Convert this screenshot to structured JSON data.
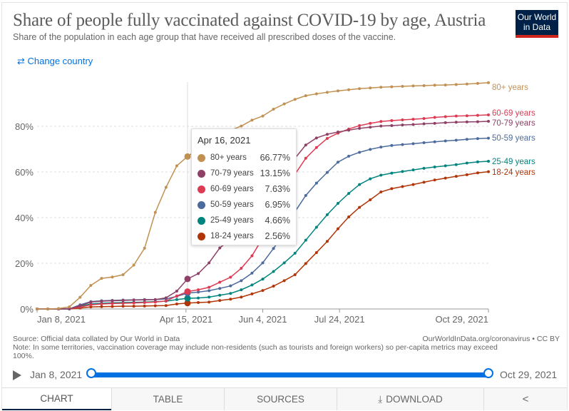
{
  "header": {
    "title": "Share of people fully vaccinated against COVID-19 by age, Austria",
    "subtitle": "Share of the population in each age group that have received all prescribed doses of the vaccine.",
    "logo_text": "Our World in Data",
    "change_country_label": "Change country",
    "change_country_icon": "swap-arrows-icon"
  },
  "tooltip": {
    "date": "Apr 16, 2021",
    "rows": [
      {
        "name": "80+ years",
        "value": "66.77%"
      },
      {
        "name": "70-79 years",
        "value": "13.15%"
      },
      {
        "name": "60-69 years",
        "value": "7.63%"
      },
      {
        "name": "50-59 years",
        "value": "6.95%"
      },
      {
        "name": "25-49 years",
        "value": "4.66%"
      },
      {
        "name": "18-24 years",
        "value": "2.56%"
      }
    ]
  },
  "footer": {
    "source": "Source: Official data collated by Our World in Data",
    "note": "Note: In some territories, vaccination coverage may include non-residents (such as tourists and foreign workers) so per-capita metrics may exceed 100%.",
    "license": "OurWorldInData.org/coronavirus • CC BY"
  },
  "timeline": {
    "start": "Jan 8, 2021",
    "end": "Oct 29, 2021",
    "play_icon": "play-icon"
  },
  "tabs": [
    {
      "label": "CHART",
      "active": true
    },
    {
      "label": "TABLE"
    },
    {
      "label": "SOURCES"
    },
    {
      "label": "DOWNLOAD",
      "icon": "download-icon"
    },
    {
      "label": "",
      "icon": "share-icon"
    }
  ],
  "chart_data": {
    "type": "line",
    "title": "Share of people fully vaccinated against COVID-19 by age, Austria",
    "ylim": [
      0,
      100
    ],
    "grid": true,
    "y_ticks": [
      0,
      20,
      40,
      60,
      80
    ],
    "y_tick_labels": [
      "0%",
      "20%",
      "40%",
      "60%",
      "80%"
    ],
    "x_ticks": [
      "2021-01-08",
      "2021-04-15",
      "2021-06-04",
      "2021-07-24",
      "2021-10-29"
    ],
    "x_tick_labels": [
      "Jan 8, 2021",
      "Apr 15, 2021",
      "Jun 4, 2021",
      "Jul 24, 2021",
      "Oct 29, 2021"
    ],
    "xlim": [
      "2021-01-08",
      "2021-10-29"
    ],
    "hover_date": "2021-04-16",
    "legend": "line-end labels",
    "x": [
      "2021-01-08",
      "2021-01-15",
      "2021-01-22",
      "2021-01-29",
      "2021-02-05",
      "2021-02-12",
      "2021-02-19",
      "2021-02-26",
      "2021-03-05",
      "2021-03-12",
      "2021-03-19",
      "2021-03-26",
      "2021-04-02",
      "2021-04-09",
      "2021-04-16",
      "2021-04-23",
      "2021-04-30",
      "2021-05-07",
      "2021-05-14",
      "2021-05-21",
      "2021-05-28",
      "2021-06-04",
      "2021-06-11",
      "2021-06-18",
      "2021-06-25",
      "2021-07-02",
      "2021-07-09",
      "2021-07-16",
      "2021-07-23",
      "2021-07-30",
      "2021-08-06",
      "2021-08-13",
      "2021-08-20",
      "2021-08-27",
      "2021-09-03",
      "2021-09-10",
      "2021-09-17",
      "2021-09-24",
      "2021-10-01",
      "2021-10-08",
      "2021-10-15",
      "2021-10-22",
      "2021-10-29"
    ],
    "series": [
      {
        "name": "80+ years",
        "color": "#c19153",
        "values": [
          0,
          0,
          0.2,
          0.9,
          5.1,
          10.3,
          13.4,
          14.0,
          15.0,
          19.2,
          26.6,
          42.3,
          53.3,
          62.7,
          66.77,
          70.0,
          73.0,
          76.0,
          78.3,
          80.1,
          82.7,
          84.5,
          87.5,
          89.8,
          91.8,
          93.4,
          94.2,
          94.9,
          95.5,
          96.0,
          96.5,
          96.8,
          97.1,
          97.3,
          97.5,
          97.7,
          97.8,
          98.0,
          98.1,
          98.3,
          98.5,
          98.8,
          99.1
        ]
      },
      {
        "name": "70-79 years",
        "color": "#8e4066",
        "values": [
          0,
          0,
          0,
          0.1,
          1.4,
          3.0,
          3.4,
          3.6,
          3.75,
          3.9,
          4.0,
          4.1,
          4.9,
          7.8,
          13.15,
          15.5,
          20.2,
          26.7,
          30.6,
          36.0,
          42.0,
          49.0,
          55.0,
          61.0,
          66.0,
          71.8,
          74.9,
          76.5,
          77.5,
          78.3,
          79.1,
          79.6,
          80.1,
          80.3,
          80.6,
          80.8,
          81.1,
          81.3,
          81.6,
          81.8,
          81.9,
          82.0,
          82.2
        ]
      },
      {
        "name": "60-69 years",
        "color": "#de3a53",
        "values": [
          0,
          0,
          0,
          0.1,
          0.8,
          1.8,
          2.2,
          2.4,
          2.5,
          2.6,
          2.8,
          3.0,
          3.5,
          5.7,
          7.63,
          8.4,
          9.5,
          11.7,
          13.9,
          17.8,
          23.3,
          31.1,
          40.0,
          49.0,
          59.0,
          66.0,
          70.7,
          74.7,
          77.0,
          78.8,
          80.3,
          81.3,
          82.1,
          82.5,
          82.8,
          83.1,
          83.4,
          83.9,
          84.2,
          84.5,
          84.6,
          84.8,
          85.0
        ]
      },
      {
        "name": "50-59 years",
        "color": "#4c6a9c",
        "values": [
          0,
          0,
          0,
          0,
          1.8,
          3.2,
          3.6,
          3.75,
          3.9,
          4.0,
          4.1,
          4.1,
          4.4,
          5.5,
          6.95,
          7.4,
          8.0,
          9.0,
          10.1,
          12.4,
          15.7,
          20.2,
          26.5,
          33.2,
          42.6,
          49.7,
          55.1,
          59.8,
          64.3,
          66.9,
          68.6,
          69.9,
          70.9,
          71.6,
          72.0,
          72.4,
          72.8,
          73.2,
          73.6,
          73.9,
          74.3,
          74.6,
          74.8
        ]
      },
      {
        "name": "25-49 years",
        "color": "#00847e",
        "values": [
          0,
          0,
          0,
          0,
          1.2,
          2.2,
          2.5,
          2.7,
          2.8,
          2.9,
          3.0,
          3.2,
          3.4,
          4.1,
          4.66,
          4.8,
          5.2,
          6.0,
          6.8,
          8.4,
          10.5,
          13.1,
          16.4,
          20.2,
          24.4,
          30.1,
          35.8,
          41.3,
          46.25,
          50.6,
          54.5,
          57.0,
          58.6,
          59.5,
          60.2,
          60.9,
          61.6,
          62.2,
          62.7,
          63.2,
          63.9,
          64.4,
          64.7
        ]
      },
      {
        "name": "18-24 years",
        "color": "#b13507",
        "values": [
          0,
          0,
          0,
          0,
          0.4,
          0.9,
          1.0,
          1.1,
          1.2,
          1.2,
          1.3,
          1.4,
          1.5,
          2.2,
          2.56,
          2.8,
          3.0,
          3.7,
          4.3,
          5.2,
          6.6,
          8.1,
          10.0,
          12.4,
          15.0,
          19.9,
          24.7,
          29.6,
          35.1,
          40.3,
          44.5,
          47.8,
          51.25,
          52.7,
          53.6,
          54.5,
          55.5,
          56.5,
          57.3,
          58.1,
          58.8,
          59.6,
          60.1
        ]
      }
    ]
  }
}
